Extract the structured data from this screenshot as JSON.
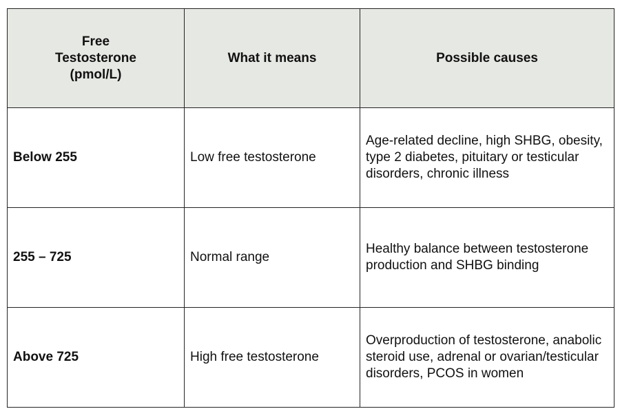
{
  "table": {
    "header": [
      "Free Testosterone (pmol/L)",
      "What it means",
      "Possible causes"
    ],
    "rows": [
      [
        "Below 255",
        "Low free testosterone",
        "Age-related decline, high SHBG, obesity, type 2 diabetes, pituitary or testicular disorders, chronic illness"
      ],
      [
        "255 – 725",
        "Normal range",
        "Healthy balance between testosterone production and SHBG binding"
      ],
      [
        "Above 725",
        "High free testosterone",
        "Overproduction of testosterone, anabolic steroid use, adrenal or ovarian/testicular disorders, PCOS in women"
      ]
    ]
  }
}
